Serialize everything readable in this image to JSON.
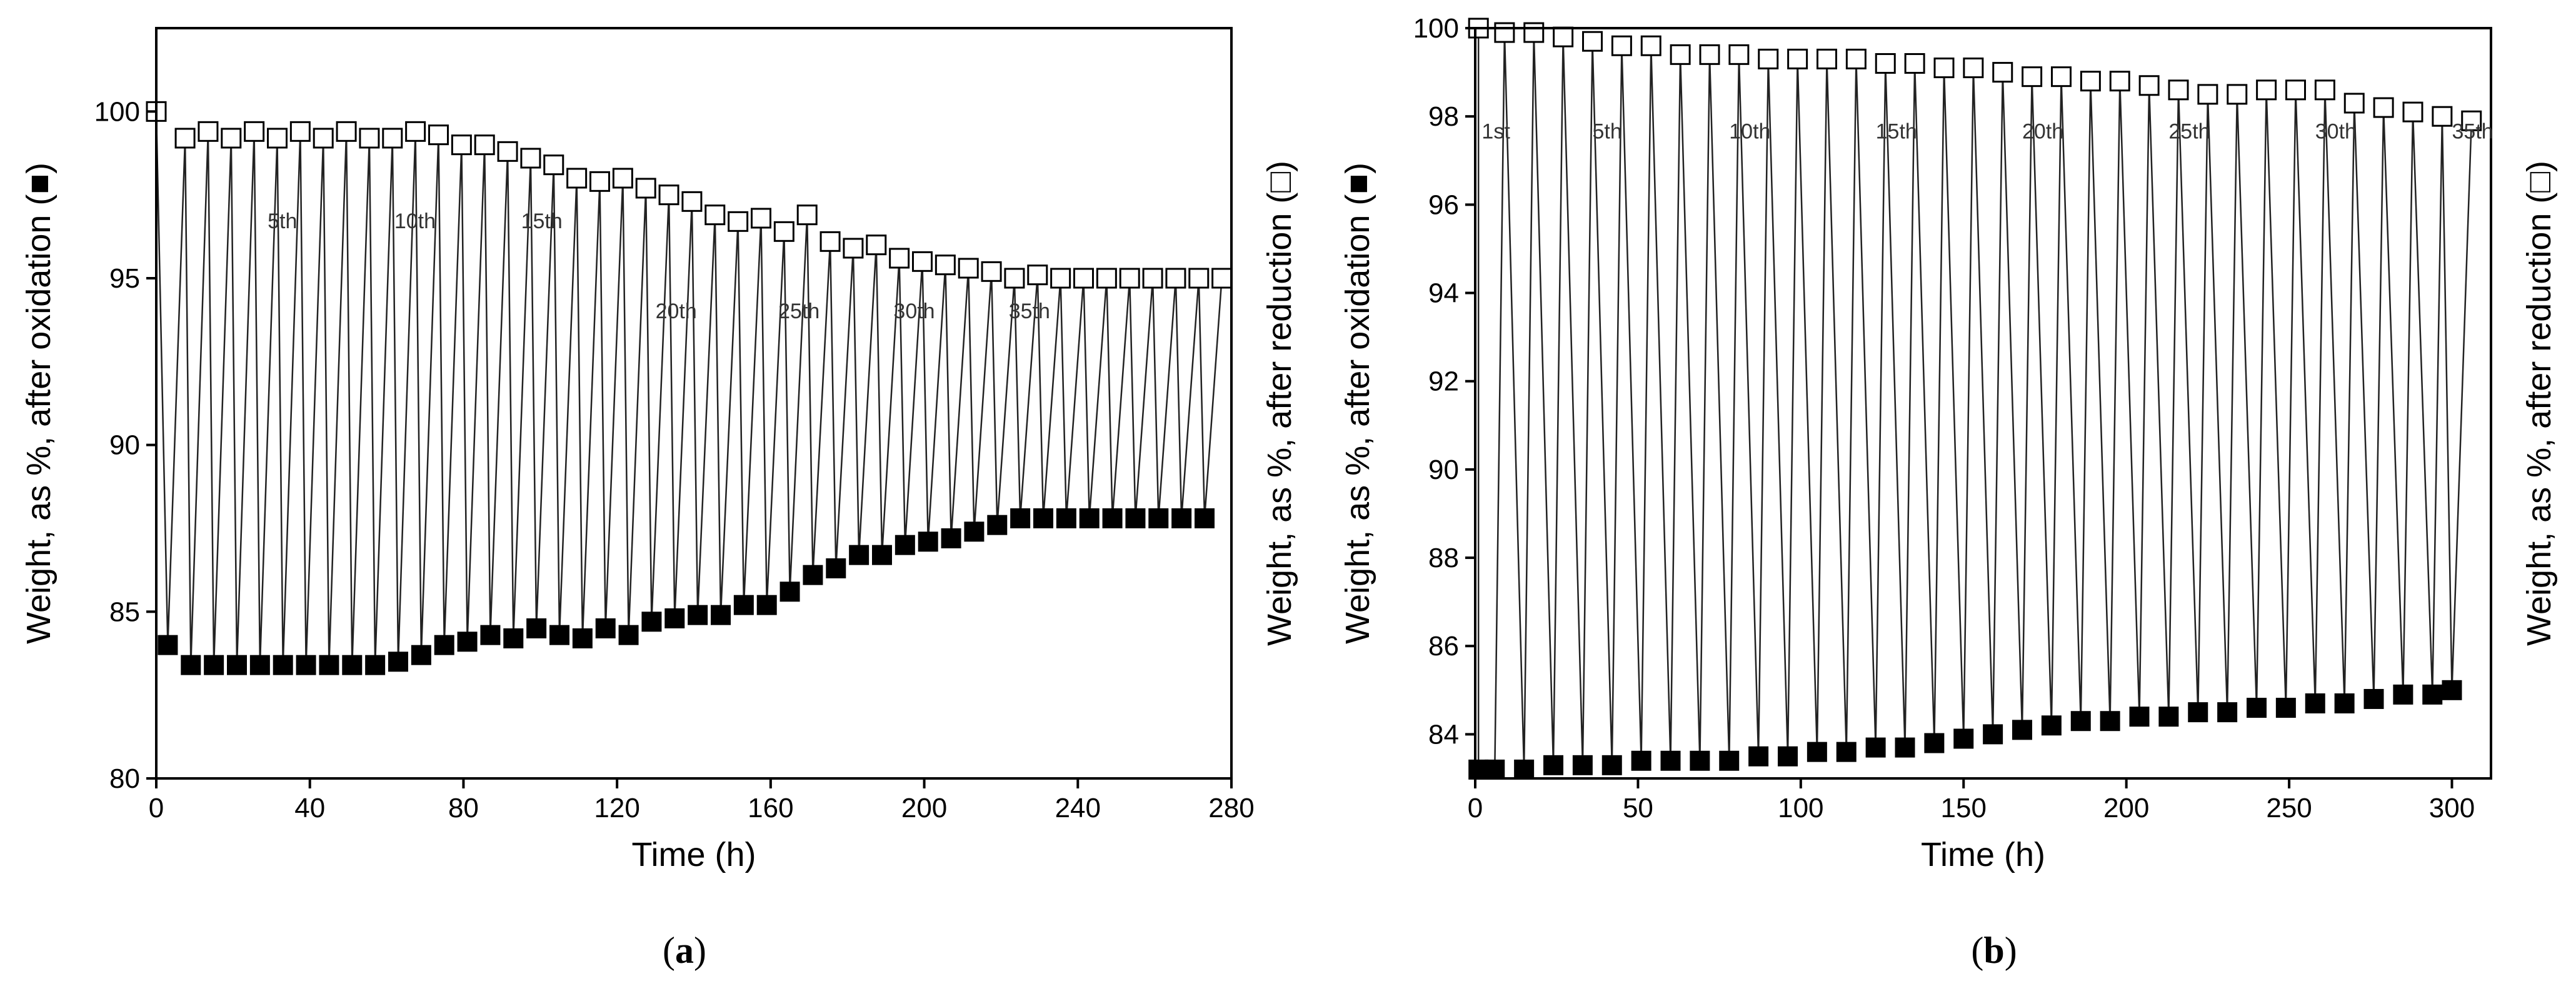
{
  "chart_data": [
    {
      "type": "line",
      "panel": "a",
      "panel_label": {
        "open": "(",
        "letter": "a",
        "close": ")"
      },
      "xlabel": "Time (h)",
      "ylabel_left": "Weight, as %, after oxidation (■)",
      "ylabel_right": "Weight, as %, after reduction (□)",
      "xlim": [
        0,
        280
      ],
      "ylim": [
        80,
        102.5
      ],
      "xticks": [
        0,
        40,
        80,
        120,
        160,
        200,
        240,
        280
      ],
      "yticks": [
        80,
        85,
        90,
        95,
        100
      ],
      "tick_labels_x": [
        "0",
        "40",
        "80",
        "120",
        "160",
        "200",
        "240",
        "280"
      ],
      "tick_labels_y": [
        "80",
        "85",
        "90",
        "95",
        "100"
      ],
      "cycle_labels": [
        {
          "text": "5th",
          "x": 29,
          "y": 96.5
        },
        {
          "text": "10th",
          "x": 62,
          "y": 96.5
        },
        {
          "text": "15th",
          "x": 95,
          "y": 96.5
        },
        {
          "text": "20th",
          "x": 130,
          "y": 93.8
        },
        {
          "text": "25th",
          "x": 162,
          "y": 93.8
        },
        {
          "text": "30th",
          "x": 192,
          "y": 93.8
        },
        {
          "text": "35th",
          "x": 222,
          "y": 93.8
        }
      ],
      "series": [
        {
          "name": "after reduction (open squares)",
          "marker": "open-square",
          "x": [
            0,
            7.5,
            13.5,
            19.5,
            25.5,
            31.5,
            37.5,
            43.5,
            49.5,
            55.5,
            61.5,
            67.5,
            73.5,
            79.5,
            85.5,
            91.5,
            97.5,
            103.5,
            109.5,
            115.5,
            121.5,
            127.5,
            133.5,
            139.5,
            145.5,
            151.5,
            157.5,
            163.5,
            169.5,
            175.5,
            181.5,
            187.5,
            193.5,
            199.5,
            205.5,
            211.5,
            217.5,
            223.5,
            229.5,
            235.5,
            241.5,
            247.5,
            253.5,
            259.5,
            265.5,
            271.5,
            277.5
          ],
          "values": [
            100.0,
            99.2,
            99.4,
            99.2,
            99.4,
            99.2,
            99.4,
            99.2,
            99.4,
            99.2,
            99.2,
            99.4,
            99.3,
            99.0,
            99.0,
            98.8,
            98.6,
            98.4,
            98.0,
            97.9,
            98.0,
            97.7,
            97.5,
            97.3,
            96.9,
            96.7,
            96.8,
            96.4,
            96.9,
            96.1,
            95.9,
            96.0,
            95.6,
            95.5,
            95.4,
            95.3,
            95.2,
            95.0,
            95.1,
            95.0,
            95.0,
            95.0,
            95.0,
            95.0,
            95.0,
            95.0,
            95.0
          ]
        },
        {
          "name": "after oxidation (filled squares)",
          "marker": "filled-square",
          "x": [
            3,
            9,
            15,
            21,
            27,
            33,
            39,
            45,
            51,
            57,
            63,
            69,
            75,
            81,
            87,
            93,
            99,
            105,
            111,
            117,
            123,
            129,
            135,
            141,
            147,
            153,
            159,
            165,
            171,
            177,
            183,
            189,
            195,
            201,
            207,
            213,
            219,
            225,
            231,
            237,
            243,
            249,
            255,
            261,
            267,
            273
          ],
          "values": [
            84.0,
            83.4,
            83.4,
            83.4,
            83.4,
            83.4,
            83.4,
            83.4,
            83.4,
            83.4,
            83.5,
            83.7,
            84.0,
            84.1,
            84.3,
            84.2,
            84.5,
            84.3,
            84.2,
            84.5,
            84.3,
            84.7,
            84.8,
            84.9,
            84.9,
            85.2,
            85.2,
            85.6,
            86.1,
            86.3,
            86.7,
            86.7,
            87.0,
            87.1,
            87.2,
            87.4,
            87.6,
            87.8,
            87.8,
            87.8,
            87.8,
            87.8,
            87.8,
            87.8,
            87.8,
            87.8
          ]
        }
      ]
    },
    {
      "type": "line",
      "panel": "b",
      "panel_label": {
        "open": "(",
        "letter": "b",
        "close": ")"
      },
      "xlabel": "Time (h)",
      "ylabel_left": "Weight, as %, after oxidation (■)",
      "ylabel_right": "Weight, as %, after reduction (□)",
      "xlim": [
        0,
        312
      ],
      "ylim": [
        83,
        100
      ],
      "xticks": [
        0,
        50,
        100,
        150,
        200,
        250,
        300
      ],
      "yticks": [
        84,
        86,
        88,
        90,
        92,
        94,
        96,
        98,
        100
      ],
      "tick_labels_x": [
        "0",
        "50",
        "100",
        "150",
        "200",
        "250",
        "300"
      ],
      "tick_labels_y": [
        "84",
        "86",
        "88",
        "90",
        "92",
        "94",
        "96",
        "98",
        "100"
      ],
      "cycle_labels": [
        {
          "text": "1st",
          "x": 2,
          "y": 97.5
        },
        {
          "text": "5th",
          "x": 36,
          "y": 97.5
        },
        {
          "text": "10th",
          "x": 78,
          "y": 97.5
        },
        {
          "text": "15th",
          "x": 123,
          "y": 97.5
        },
        {
          "text": "20th",
          "x": 168,
          "y": 97.5
        },
        {
          "text": "25th",
          "x": 213,
          "y": 97.5
        },
        {
          "text": "30th",
          "x": 258,
          "y": 97.5
        },
        {
          "text": "35th",
          "x": 300,
          "y": 97.5
        }
      ],
      "series": [
        {
          "name": "after reduction (open squares)",
          "marker": "open-square",
          "x": [
            1,
            9,
            18,
            27,
            36,
            45,
            54,
            63,
            72,
            81,
            90,
            99,
            108,
            117,
            126,
            135,
            144,
            153,
            162,
            171,
            180,
            189,
            198,
            207,
            216,
            225,
            234,
            243,
            252,
            261,
            270,
            279,
            288,
            297,
            306
          ],
          "values": [
            100.0,
            99.9,
            99.9,
            99.8,
            99.7,
            99.6,
            99.6,
            99.4,
            99.4,
            99.4,
            99.3,
            99.3,
            99.3,
            99.3,
            99.2,
            99.2,
            99.1,
            99.1,
            99.0,
            98.9,
            98.9,
            98.8,
            98.8,
            98.7,
            98.6,
            98.5,
            98.5,
            98.6,
            98.6,
            98.6,
            98.3,
            98.2,
            98.1,
            98.0,
            97.9
          ]
        },
        {
          "name": "after oxidation (filled squares)",
          "marker": "filled-square",
          "x": [
            1,
            6,
            15,
            24,
            33,
            42,
            51,
            60,
            69,
            78,
            87,
            96,
            105,
            114,
            123,
            132,
            141,
            150,
            159,
            168,
            177,
            186,
            195,
            204,
            213,
            222,
            231,
            240,
            249,
            258,
            267,
            276,
            285,
            294,
            300
          ],
          "values": [
            83.2,
            83.2,
            83.2,
            83.3,
            83.3,
            83.3,
            83.4,
            83.4,
            83.4,
            83.4,
            83.5,
            83.5,
            83.6,
            83.6,
            83.7,
            83.7,
            83.8,
            83.9,
            84.0,
            84.1,
            84.2,
            84.3,
            84.3,
            84.4,
            84.4,
            84.5,
            84.5,
            84.6,
            84.6,
            84.7,
            84.7,
            84.8,
            84.9,
            84.9,
            85.0
          ]
        }
      ]
    }
  ]
}
